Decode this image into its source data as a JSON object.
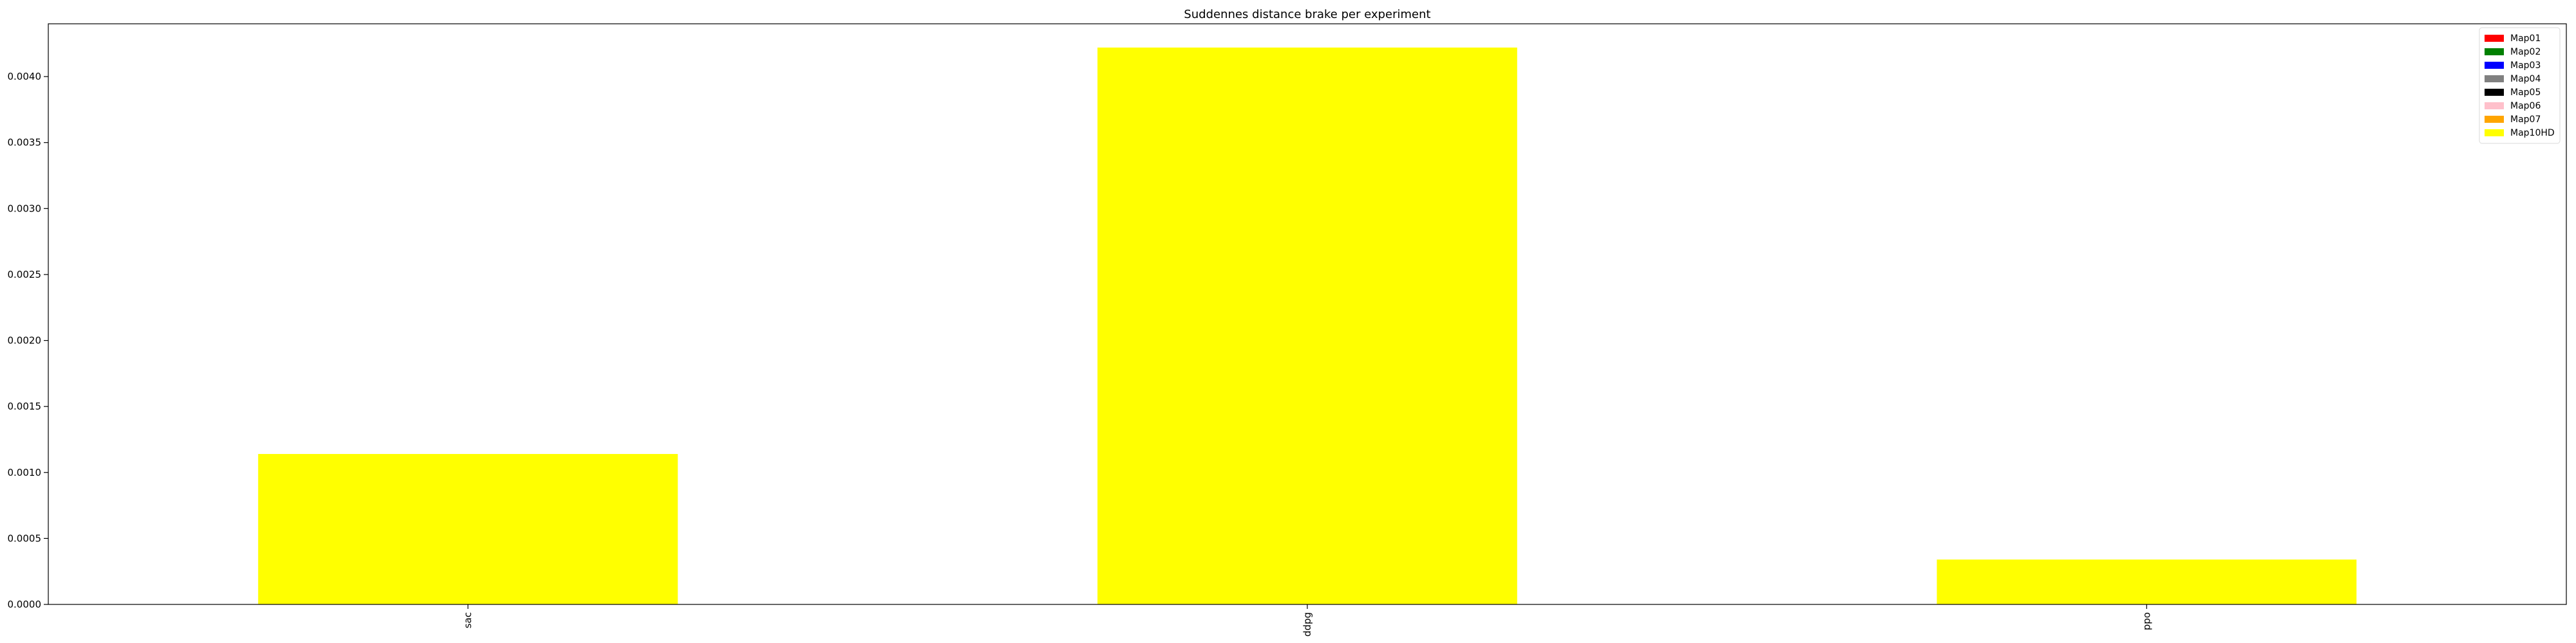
{
  "chart_data": {
    "type": "bar",
    "title": "Suddennes distance brake per experiment",
    "xlabel": "",
    "ylabel": "",
    "categories": [
      "sac",
      "ddpg",
      "ppo"
    ],
    "ylim": [
      0,
      0.0044
    ],
    "yticks": [
      "0.0000",
      "0.0005",
      "0.0010",
      "0.0015",
      "0.0020",
      "0.0025",
      "0.0030",
      "0.0035",
      "0.0040"
    ],
    "ytick_values": [
      0,
      0.0005,
      0.001,
      0.0015,
      0.002,
      0.0025,
      0.003,
      0.0035,
      0.004
    ],
    "series": [
      {
        "name": "Map01",
        "color": "#ff0000",
        "values": [
          0,
          0,
          0
        ]
      },
      {
        "name": "Map02",
        "color": "#008000",
        "values": [
          0,
          0,
          0
        ]
      },
      {
        "name": "Map03",
        "color": "#0000ff",
        "values": [
          0,
          0,
          0
        ]
      },
      {
        "name": "Map04",
        "color": "#808080",
        "values": [
          0,
          0,
          0
        ]
      },
      {
        "name": "Map05",
        "color": "#000000",
        "values": [
          0,
          0,
          0
        ]
      },
      {
        "name": "Map06",
        "color": "#ffc0cb",
        "values": [
          0,
          0,
          0
        ]
      },
      {
        "name": "Map07",
        "color": "#ffa500",
        "values": [
          0,
          0,
          0
        ]
      },
      {
        "name": "Map10HD",
        "color": "#ffff00",
        "values": [
          0.00114,
          0.00422,
          0.00034
        ]
      }
    ],
    "grid": false,
    "legend_position": "top-right"
  }
}
